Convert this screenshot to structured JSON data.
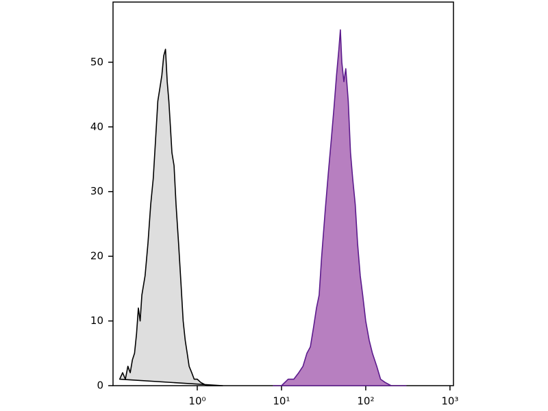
{
  "chart_data": {
    "type": "histogram-overlay",
    "xscale": "log",
    "xlim": [
      0.1,
      1100
    ],
    "ylim": [
      0,
      59.3
    ],
    "xticks": [
      {
        "value": 1,
        "label": "10⁰"
      },
      {
        "value": 10,
        "label": "10¹"
      },
      {
        "value": 100,
        "label": "10²"
      },
      {
        "value": 1000,
        "label": "10³"
      }
    ],
    "yticks": [
      0,
      10,
      20,
      30,
      40,
      50
    ],
    "series": [
      {
        "color": "#000000",
        "fill": "#dedede",
        "x": [
          0.12,
          0.13,
          0.14,
          0.15,
          0.16,
          0.17,
          0.18,
          0.19,
          0.2,
          0.21,
          0.22,
          0.24,
          0.26,
          0.28,
          0.3,
          0.32,
          0.34,
          0.36,
          0.38,
          0.4,
          0.42,
          0.44,
          0.46,
          0.48,
          0.5,
          0.53,
          0.56,
          0.6,
          0.64,
          0.68,
          0.72,
          0.76,
          0.8,
          0.86,
          0.92,
          1.0,
          1.1,
          1.3,
          1.6,
          2.0
        ],
        "values": [
          1,
          2,
          1,
          3,
          2,
          4,
          5,
          8,
          12,
          10,
          14,
          17,
          22,
          28,
          32,
          38,
          44,
          46,
          48,
          51,
          52,
          47,
          44,
          40,
          36,
          34,
          28,
          22,
          16,
          10,
          7,
          5,
          3,
          2,
          1,
          1,
          0.5,
          0,
          0,
          0
        ]
      },
      {
        "color": "#5b1a8c",
        "fill": "#b77fc0",
        "x": [
          8,
          10,
          12,
          14,
          16,
          18,
          20,
          22,
          24,
          26,
          28,
          30,
          33,
          36,
          39,
          42,
          45,
          48,
          50,
          52,
          55,
          58,
          62,
          66,
          70,
          75,
          80,
          86,
          92,
          100,
          110,
          120,
          135,
          150,
          170,
          200,
          300
        ],
        "values": [
          0,
          0,
          1,
          1,
          2,
          3,
          5,
          6,
          9,
          12,
          14,
          20,
          27,
          33,
          38,
          43,
          48,
          52,
          55,
          50,
          47,
          49,
          44,
          36,
          32,
          28,
          22,
          17,
          14,
          10,
          7,
          5,
          3,
          1,
          0.5,
          0,
          0
        ]
      }
    ]
  }
}
